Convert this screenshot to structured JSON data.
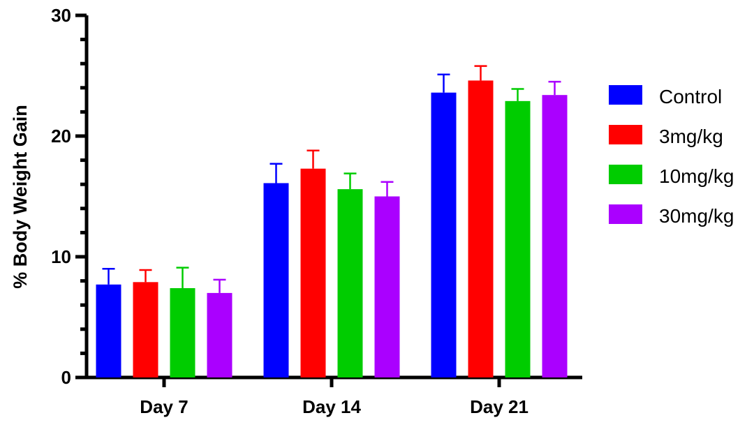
{
  "chart_data": {
    "type": "bar",
    "title": "",
    "xlabel": "",
    "ylabel": "% Body Weight Gain",
    "ylim": [
      0,
      30
    ],
    "yticks": [
      0,
      10,
      20,
      30
    ],
    "categories": [
      "Day 7",
      "Day 14",
      "Day 21"
    ],
    "series": [
      {
        "name": "Control",
        "color": "#0000ff",
        "values": [
          7.7,
          16.1,
          23.6
        ],
        "errors": [
          1.3,
          1.6,
          1.5
        ]
      },
      {
        "name": "3mg/kg",
        "color": "#ff0000",
        "values": [
          7.9,
          17.3,
          24.6
        ],
        "errors": [
          1.0,
          1.5,
          1.2
        ]
      },
      {
        "name": "10mg/kg",
        "color": "#00cc00",
        "values": [
          7.4,
          15.6,
          22.9
        ],
        "errors": [
          1.7,
          1.3,
          1.0
        ]
      },
      {
        "name": "30mg/kg",
        "color": "#aa00ff",
        "values": [
          7.0,
          15.0,
          23.4
        ],
        "errors": [
          1.1,
          1.2,
          1.1
        ]
      }
    ],
    "grid": false,
    "legend": "right",
    "error_bars": "upper"
  }
}
